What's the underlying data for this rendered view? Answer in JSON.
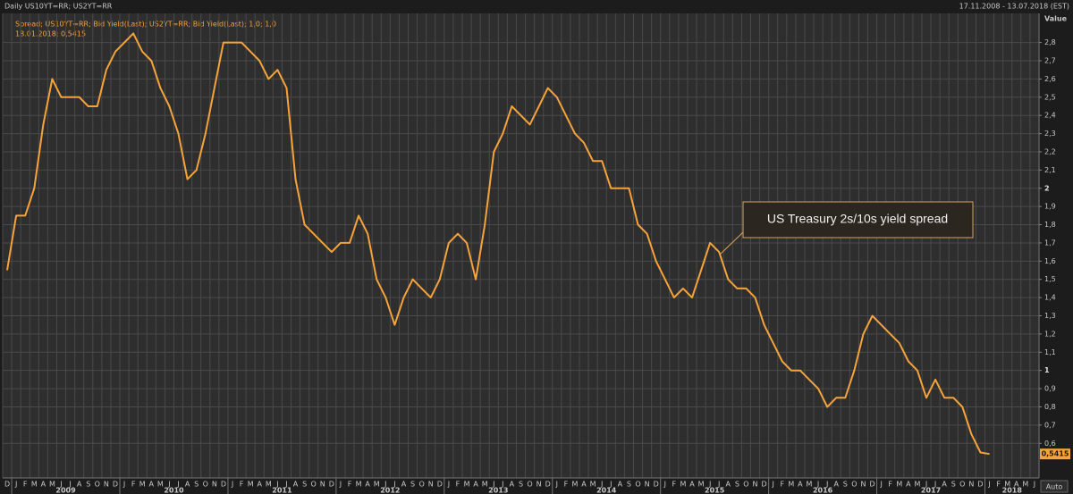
{
  "chart_data": {
    "type": "line",
    "title": "Daily US10YT=RR; US2YT=RR",
    "date_range": "17.11.2008 - 13.07.2018 (EST)",
    "y_axis_title": "Value",
    "legend_lines": [
      "Spread; US10YT=RR; Bid Yield(Last); US2YT=RR; Bid Yield(Last);  1,0; 1,0",
      "18.01.2018; 0,5415"
    ],
    "annotation": "US Treasury 2s/10s yield spread",
    "last_label": "0,5415",
    "button": "Auto",
    "grid": true,
    "series": [
      {
        "name": "Spread",
        "color": "#f5a33a",
        "x": [
          "2008-12",
          "2009-01",
          "2009-02",
          "2009-03",
          "2009-04",
          "2009-05",
          "2009-06",
          "2009-07",
          "2009-08",
          "2009-09",
          "2009-10",
          "2009-11",
          "2009-12",
          "2010-01",
          "2010-02",
          "2010-03",
          "2010-04",
          "2010-05",
          "2010-06",
          "2010-07",
          "2010-08",
          "2010-09",
          "2010-10",
          "2010-11",
          "2010-12",
          "2011-01",
          "2011-02",
          "2011-03",
          "2011-04",
          "2011-05",
          "2011-06",
          "2011-07",
          "2011-08",
          "2011-09",
          "2011-10",
          "2011-11",
          "2011-12",
          "2012-01",
          "2012-02",
          "2012-03",
          "2012-04",
          "2012-05",
          "2012-06",
          "2012-07",
          "2012-08",
          "2012-09",
          "2012-10",
          "2012-11",
          "2012-12",
          "2013-01",
          "2013-02",
          "2013-03",
          "2013-04",
          "2013-05",
          "2013-06",
          "2013-07",
          "2013-08",
          "2013-09",
          "2013-10",
          "2013-11",
          "2013-12",
          "2014-01",
          "2014-02",
          "2014-03",
          "2014-04",
          "2014-05",
          "2014-06",
          "2014-07",
          "2014-08",
          "2014-09",
          "2014-10",
          "2014-11",
          "2014-12",
          "2015-01",
          "2015-02",
          "2015-03",
          "2015-04",
          "2015-05",
          "2015-06",
          "2015-07",
          "2015-08",
          "2015-09",
          "2015-10",
          "2015-11",
          "2015-12",
          "2016-01",
          "2016-02",
          "2016-03",
          "2016-04",
          "2016-05",
          "2016-06",
          "2016-07",
          "2016-08",
          "2016-09",
          "2016-10",
          "2016-11",
          "2016-12",
          "2017-01",
          "2017-02",
          "2017-03",
          "2017-04",
          "2017-05",
          "2017-06",
          "2017-07",
          "2017-08",
          "2017-09",
          "2017-10",
          "2017-11",
          "2017-12",
          "2018-01"
        ],
        "values": [
          1.55,
          1.85,
          1.85,
          2.0,
          2.35,
          2.6,
          2.5,
          2.5,
          2.5,
          2.45,
          2.45,
          2.65,
          2.75,
          2.8,
          2.85,
          2.75,
          2.7,
          2.55,
          2.45,
          2.3,
          2.05,
          2.1,
          2.3,
          2.55,
          2.8,
          2.8,
          2.8,
          2.75,
          2.7,
          2.6,
          2.65,
          2.55,
          2.05,
          1.8,
          1.75,
          1.7,
          1.65,
          1.7,
          1.7,
          1.85,
          1.75,
          1.5,
          1.4,
          1.25,
          1.4,
          1.5,
          1.45,
          1.4,
          1.5,
          1.7,
          1.75,
          1.7,
          1.5,
          1.8,
          2.2,
          2.3,
          2.45,
          2.4,
          2.35,
          2.45,
          2.55,
          2.5,
          2.4,
          2.3,
          2.25,
          2.15,
          2.15,
          2.0,
          2.0,
          2.0,
          1.8,
          1.75,
          1.6,
          1.5,
          1.4,
          1.45,
          1.4,
          1.55,
          1.7,
          1.65,
          1.5,
          1.45,
          1.45,
          1.4,
          1.25,
          1.15,
          1.05,
          1.0,
          1.0,
          0.95,
          0.9,
          0.8,
          0.85,
          0.85,
          1.0,
          1.2,
          1.3,
          1.25,
          1.2,
          1.15,
          1.05,
          1.0,
          0.85,
          0.95,
          0.85,
          0.85,
          0.8,
          0.65,
          0.55,
          0.5415
        ]
      }
    ],
    "xlim": [
      "2008-12",
      "2018-07"
    ],
    "xticks": [
      {
        "value": "2008-12",
        "label": "D"
      },
      {
        "value": "2009-01",
        "label": "J"
      },
      {
        "value": "2009-02",
        "label": "F"
      },
      {
        "value": "2009-03",
        "label": "M"
      },
      {
        "value": "2009-04",
        "label": "A"
      },
      {
        "value": "2009-05",
        "label": "M"
      },
      {
        "value": "2009-06",
        "label": "J"
      },
      {
        "value": "2009-07",
        "label": "J"
      },
      {
        "value": "2009-08",
        "label": "A"
      },
      {
        "value": "2009-09",
        "label": "S"
      },
      {
        "value": "2009-10",
        "label": "O"
      },
      {
        "value": "2009-11",
        "label": "N"
      },
      {
        "value": "2009-12",
        "label": "D"
      },
      {
        "value": "2010-01",
        "label": "J"
      },
      {
        "value": "2010-02",
        "label": "F"
      },
      {
        "value": "2010-03",
        "label": "M"
      },
      {
        "value": "2010-04",
        "label": "A"
      },
      {
        "value": "2010-05",
        "label": "M"
      },
      {
        "value": "2010-06",
        "label": "J"
      },
      {
        "value": "2010-07",
        "label": "J"
      },
      {
        "value": "2010-08",
        "label": "A"
      },
      {
        "value": "2010-09",
        "label": "S"
      },
      {
        "value": "2010-10",
        "label": "O"
      },
      {
        "value": "2010-11",
        "label": "N"
      },
      {
        "value": "2010-12",
        "label": "D"
      },
      {
        "value": "2011-01",
        "label": "J"
      },
      {
        "value": "2011-02",
        "label": "F"
      },
      {
        "value": "2011-03",
        "label": "M"
      },
      {
        "value": "2011-04",
        "label": "A"
      },
      {
        "value": "2011-05",
        "label": "M"
      },
      {
        "value": "2011-06",
        "label": "J"
      },
      {
        "value": "2011-07",
        "label": "J"
      },
      {
        "value": "2011-08",
        "label": "A"
      },
      {
        "value": "2011-09",
        "label": "S"
      },
      {
        "value": "2011-10",
        "label": "O"
      },
      {
        "value": "2011-11",
        "label": "N"
      },
      {
        "value": "2011-12",
        "label": "D"
      },
      {
        "value": "2012-01",
        "label": "J"
      },
      {
        "value": "2012-02",
        "label": "F"
      },
      {
        "value": "2012-03",
        "label": "M"
      },
      {
        "value": "2012-04",
        "label": "A"
      },
      {
        "value": "2012-05",
        "label": "M"
      },
      {
        "value": "2012-06",
        "label": "J"
      },
      {
        "value": "2012-07",
        "label": "J"
      },
      {
        "value": "2012-08",
        "label": "A"
      },
      {
        "value": "2012-09",
        "label": "S"
      },
      {
        "value": "2012-10",
        "label": "O"
      },
      {
        "value": "2012-11",
        "label": "N"
      },
      {
        "value": "2012-12",
        "label": "D"
      },
      {
        "value": "2013-01",
        "label": "J"
      },
      {
        "value": "2013-02",
        "label": "F"
      },
      {
        "value": "2013-03",
        "label": "M"
      },
      {
        "value": "2013-04",
        "label": "A"
      },
      {
        "value": "2013-05",
        "label": "M"
      },
      {
        "value": "2013-06",
        "label": "J"
      },
      {
        "value": "2013-07",
        "label": "J"
      },
      {
        "value": "2013-08",
        "label": "A"
      },
      {
        "value": "2013-09",
        "label": "S"
      },
      {
        "value": "2013-10",
        "label": "O"
      },
      {
        "value": "2013-11",
        "label": "N"
      },
      {
        "value": "2013-12",
        "label": "D"
      },
      {
        "value": "2014-01",
        "label": "J"
      },
      {
        "value": "2014-02",
        "label": "F"
      },
      {
        "value": "2014-03",
        "label": "M"
      },
      {
        "value": "2014-04",
        "label": "A"
      },
      {
        "value": "2014-05",
        "label": "M"
      },
      {
        "value": "2014-06",
        "label": "J"
      },
      {
        "value": "2014-07",
        "label": "J"
      },
      {
        "value": "2014-08",
        "label": "A"
      },
      {
        "value": "2014-09",
        "label": "S"
      },
      {
        "value": "2014-10",
        "label": "O"
      },
      {
        "value": "2014-11",
        "label": "N"
      },
      {
        "value": "2014-12",
        "label": "D"
      },
      {
        "value": "2015-01",
        "label": "J"
      },
      {
        "value": "2015-02",
        "label": "F"
      },
      {
        "value": "2015-03",
        "label": "M"
      },
      {
        "value": "2015-04",
        "label": "A"
      },
      {
        "value": "2015-05",
        "label": "M"
      },
      {
        "value": "2015-06",
        "label": "J"
      },
      {
        "value": "2015-07",
        "label": "J"
      },
      {
        "value": "2015-08",
        "label": "A"
      },
      {
        "value": "2015-09",
        "label": "S"
      },
      {
        "value": "2015-10",
        "label": "O"
      },
      {
        "value": "2015-11",
        "label": "N"
      },
      {
        "value": "2015-12",
        "label": "D"
      },
      {
        "value": "2016-01",
        "label": "J"
      },
      {
        "value": "2016-02",
        "label": "F"
      },
      {
        "value": "2016-03",
        "label": "M"
      },
      {
        "value": "2016-04",
        "label": "A"
      },
      {
        "value": "2016-05",
        "label": "M"
      },
      {
        "value": "2016-06",
        "label": "J"
      },
      {
        "value": "2016-07",
        "label": "J"
      },
      {
        "value": "2016-08",
        "label": "A"
      },
      {
        "value": "2016-09",
        "label": "S"
      },
      {
        "value": "2016-10",
        "label": "O"
      },
      {
        "value": "2016-11",
        "label": "N"
      },
      {
        "value": "2016-12",
        "label": "D"
      },
      {
        "value": "2017-01",
        "label": "J"
      },
      {
        "value": "2017-02",
        "label": "F"
      },
      {
        "value": "2017-03",
        "label": "M"
      },
      {
        "value": "2017-04",
        "label": "A"
      },
      {
        "value": "2017-05",
        "label": "M"
      },
      {
        "value": "2017-06",
        "label": "J"
      },
      {
        "value": "2017-07",
        "label": "J"
      },
      {
        "value": "2017-08",
        "label": "A"
      },
      {
        "value": "2017-09",
        "label": "S"
      },
      {
        "value": "2017-10",
        "label": "O"
      },
      {
        "value": "2017-11",
        "label": "N"
      },
      {
        "value": "2017-12",
        "label": "D"
      },
      {
        "value": "2018-01",
        "label": "J"
      },
      {
        "value": "2018-02",
        "label": "F"
      },
      {
        "value": "2018-03",
        "label": "M"
      },
      {
        "value": "2018-04",
        "label": "A"
      },
      {
        "value": "2018-05",
        "label": "M"
      },
      {
        "value": "2018-06",
        "label": "J"
      }
    ],
    "years": [
      2009,
      2010,
      2011,
      2012,
      2013,
      2014,
      2015,
      2016,
      2017,
      2018
    ],
    "ylim": [
      0.41,
      2.96
    ],
    "yticks": [
      {
        "value": 0.6,
        "label": "0,6"
      },
      {
        "value": 0.7,
        "label": "0,7"
      },
      {
        "value": 0.8,
        "label": "0,8"
      },
      {
        "value": 0.9,
        "label": "0,9"
      },
      1,
      {
        "value": 1.1,
        "label": "1,1"
      },
      {
        "value": 1.2,
        "label": "1,2"
      },
      {
        "value": 1.3,
        "label": "1,3"
      },
      {
        "value": 1.4,
        "label": "1,4"
      },
      {
        "value": 1.5,
        "label": "1,5"
      },
      {
        "value": 1.6,
        "label": "1,6"
      },
      {
        "value": 1.7,
        "label": "1,7"
      },
      {
        "value": 1.8,
        "label": "1,8"
      },
      {
        "value": 1.9,
        "label": "1,9"
      },
      2,
      {
        "value": 2.1,
        "label": "2,1"
      },
      {
        "value": 2.2,
        "label": "2,2"
      },
      {
        "value": 2.3,
        "label": "2,3"
      },
      {
        "value": 2.4,
        "label": "2,4"
      },
      {
        "value": 2.5,
        "label": "2,5"
      },
      {
        "value": 2.6,
        "label": "2,6"
      },
      {
        "value": 2.7,
        "label": "2,7"
      },
      {
        "value": 2.8,
        "label": "2,8"
      }
    ]
  }
}
